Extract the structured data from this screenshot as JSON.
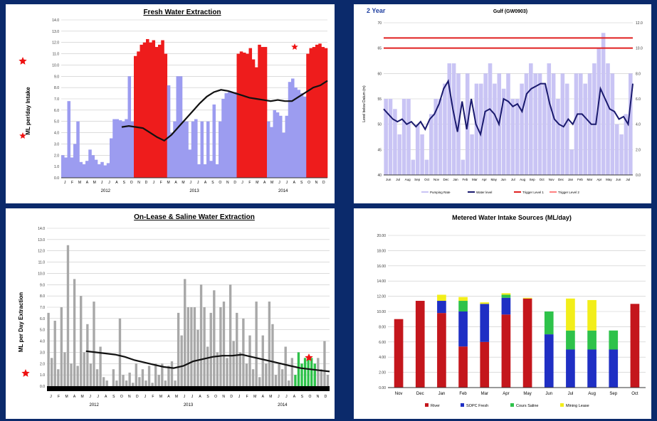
{
  "colors": {
    "background": "#0b2a6b",
    "fresh_bar": "#9c9cf0",
    "fresh_peak": "#ee1c1c",
    "trend": "#111111",
    "saline_bar": "#a8a8a8",
    "saline_green": "#2ec24a",
    "target_line": "#e02020",
    "river": "#c4161c",
    "sopc": "#1f2fc4",
    "saline": "#2ec24a",
    "mining": "#f2ee1a",
    "star": "#ee1111"
  },
  "chart_data": [
    {
      "id": "fresh",
      "type": "bar",
      "title": "Fresh Water Extraction",
      "ylabel": "ML per/day Intake",
      "ylim": [
        0,
        14
      ],
      "ytick_labels": [
        "0.0",
        "1.0",
        "2.0",
        "3.0",
        "4.0",
        "5.0",
        "6.0",
        "7.0",
        "8.0",
        "9.0",
        "10.0",
        "11.0",
        "12.0",
        "13.0",
        "14.0"
      ],
      "year_labels": [
        "2012",
        "2013",
        "2014"
      ],
      "month_labels": [
        "J",
        "F",
        "M",
        "A",
        "M",
        "J",
        "J",
        "A",
        "S",
        "O",
        "N",
        "D",
        "J",
        "F",
        "M",
        "A",
        "M",
        "J",
        "J",
        "A",
        "S",
        "O",
        "N",
        "D",
        "J",
        "F",
        "M",
        "A",
        "M",
        "J",
        "J",
        "A",
        "S",
        "O",
        "N",
        "D"
      ],
      "values": [
        2.0,
        1.8,
        6.8,
        1.8,
        3.0,
        5.0,
        1.4,
        1.2,
        1.5,
        2.5,
        2.0,
        1.6,
        1.2,
        1.4,
        1.1,
        1.3,
        3.5,
        5.2,
        5.2,
        5.1,
        5.0,
        5.2,
        9.0,
        5.0,
        10.8,
        11.2,
        11.8,
        12.0,
        12.3,
        12.0,
        12.2,
        11.6,
        11.8,
        12.2,
        11.0,
        8.2,
        4.0,
        5.0,
        9.0,
        9.0,
        5.0,
        5.0,
        2.5,
        5.0,
        5.2,
        1.2,
        5.0,
        1.2,
        5.0,
        1.5,
        6.5,
        1.2,
        5.0,
        7.0,
        7.5,
        7.6,
        7.6,
        7.6,
        11.0,
        11.2,
        11.1,
        11.0,
        11.5,
        10.5,
        9.8,
        11.8,
        11.6,
        11.6,
        5.0,
        4.5,
        6.0,
        5.8,
        5.5,
        4.0,
        5.5,
        8.5,
        8.8,
        8.0,
        7.8,
        7.5,
        7.2,
        11.0,
        11.5,
        11.6,
        11.8,
        11.9,
        11.6,
        11.5
      ],
      "peak_ranges": [
        [
          24,
          34
        ],
        [
          58,
          67
        ],
        [
          81,
          87
        ]
      ],
      "trend": [
        4.5,
        4.6,
        4.5,
        4.4,
        4.0,
        3.6,
        3.3,
        3.8,
        4.5,
        5.2,
        5.9,
        6.6,
        7.2,
        7.6,
        7.8,
        7.7,
        7.5,
        7.3,
        7.1,
        7.0,
        6.9,
        6.8,
        6.9,
        6.8,
        6.8,
        7.2,
        7.6,
        8.0,
        8.2,
        8.6
      ],
      "trend_start_index": 20,
      "stars": 2
    },
    {
      "id": "two-year",
      "type": "bar",
      "title": "Gulf (GW0903)",
      "subtitle": "2 Year",
      "ylabel": "Level below Datum (m)",
      "ylim": [
        40,
        70
      ],
      "ytick_labels": [
        "40",
        "45",
        "50",
        "55",
        "60",
        "65",
        "70"
      ],
      "y2_tick_labels": [
        "0.0",
        "2.0",
        "4.0",
        "6.0",
        "8.0",
        "10.0",
        "12.0"
      ],
      "month_labels": [
        "Jun",
        "Jul",
        "Aug",
        "Sep",
        "Oct",
        "Nov",
        "Dec",
        "Jan",
        "Feb",
        "Mar",
        "Apr",
        "May",
        "Jun",
        "Jul",
        "Aug",
        "Sep",
        "Oct",
        "Nov",
        "Dec",
        "Jan",
        "Feb",
        "Mar",
        "Apr",
        "May",
        "Jun",
        "Jul"
      ],
      "bar_values": [
        55,
        55,
        53,
        48,
        55,
        55,
        43,
        50,
        48,
        43,
        52,
        55,
        55,
        58,
        62,
        62,
        60,
        43,
        60,
        48,
        58,
        58,
        60,
        62,
        58,
        60,
        57,
        60,
        55,
        55,
        58,
        60,
        62,
        60,
        60,
        58,
        62,
        60,
        55,
        60,
        58,
        45,
        60,
        60,
        58,
        60,
        62,
        65,
        68,
        62,
        60,
        50,
        48,
        52,
        60
      ],
      "line_values": [
        53,
        52,
        51,
        50.5,
        51,
        50,
        50.5,
        49.5,
        50.5,
        49,
        51,
        52,
        54,
        57,
        58.5,
        53,
        48.5,
        54.5,
        49,
        55,
        50,
        48,
        52.5,
        53,
        52,
        50,
        55,
        54.5,
        53.5,
        54,
        52.5,
        56,
        57,
        57.5,
        58,
        58,
        54,
        51,
        50,
        49.5,
        51,
        50,
        52,
        52,
        51,
        50,
        50,
        57,
        55,
        53,
        52.5,
        51,
        51.5,
        50,
        58
      ],
      "target_lines": [
        67,
        65
      ],
      "legend": [
        "Pumping Rate",
        "Water level",
        "Trigger Level 1",
        "Trigger Level 2"
      ]
    },
    {
      "id": "saline",
      "type": "bar",
      "title": "On-Lease & Saline Water Extraction",
      "ylabel": "ML per Day Extraction",
      "ylim": [
        0,
        14
      ],
      "ytick_labels": [
        "0.0",
        "1.0",
        "2.0",
        "3.0",
        "4.0",
        "5.0",
        "6.0",
        "7.0",
        "8.0",
        "9.0",
        "10.0",
        "11.0",
        "12.0",
        "13.0",
        "14.0"
      ],
      "year_labels": [
        "2012",
        "2013",
        "2014"
      ],
      "month_labels": [
        "J",
        "F",
        "M",
        "A",
        "M",
        "J",
        "J",
        "A",
        "S",
        "O",
        "N",
        "D",
        "J",
        "F",
        "M",
        "A",
        "M",
        "J",
        "J",
        "A",
        "S",
        "O",
        "N",
        "D",
        "J",
        "F",
        "M",
        "A",
        "M",
        "J",
        "J",
        "A",
        "S",
        "O",
        "N",
        "D"
      ],
      "values": [
        6.5,
        2.5,
        5.8,
        1.5,
        7.0,
        3.0,
        12.5,
        2.0,
        9.5,
        1.8,
        8.0,
        3.0,
        5.5,
        2.0,
        7.5,
        1.5,
        3.5,
        0.8,
        0.5,
        0.0,
        1.5,
        0.5,
        6.0,
        1.0,
        0.5,
        1.2,
        0.3,
        2.0,
        0.8,
        1.5,
        0.5,
        1.8,
        0.3,
        2.0,
        1.0,
        2.0,
        0.5,
        1.8,
        2.2,
        0.5,
        6.5,
        4.5,
        9.5,
        7.0,
        7.0,
        7.0,
        5.0,
        9.0,
        7.0,
        3.5,
        6.5,
        8.5,
        3.0,
        7.0,
        7.5,
        2.5,
        9.0,
        4.0,
        6.5,
        3.0,
        6.0,
        2.0,
        4.5,
        1.5,
        7.5,
        0.8,
        4.5,
        2.0,
        7.5,
        5.5,
        1.0,
        2.0,
        1.5,
        3.5,
        0.5,
        2.5,
        1.0,
        3.0,
        2.0,
        2.5,
        2.5,
        2.5,
        2.0,
        2.5,
        1.5,
        4.0,
        1.0
      ],
      "green_start": 76,
      "trend": [
        3.1,
        3.0,
        2.9,
        2.8,
        2.6,
        2.3,
        2.1,
        1.9,
        1.7,
        1.6,
        1.8,
        2.2,
        2.4,
        2.6,
        2.7,
        2.7,
        2.8,
        2.6,
        2.4,
        2.2,
        2.0,
        1.8,
        1.6,
        1.5,
        1.4,
        1.3
      ],
      "trend_start_index": 12,
      "stars": 2
    },
    {
      "id": "metered",
      "type": "bar",
      "stacked": true,
      "title": "Metered Water Intake Sources (ML/day)",
      "ylim": [
        0,
        20
      ],
      "ytick_labels": [
        "0.00",
        "2.00",
        "4.00",
        "6.00",
        "8.00",
        "10.00",
        "12.00",
        "14.00",
        "16.00",
        "18.00",
        "20.00"
      ],
      "categories": [
        "Nov",
        "Dec",
        "Jan",
        "Feb",
        "Mar",
        "Apr",
        "May",
        "Jun",
        "Jul",
        "Aug",
        "Sep",
        "Oct"
      ],
      "series": [
        {
          "name": "River",
          "values": [
            9.0,
            11.4,
            9.8,
            5.4,
            6.0,
            9.6,
            11.7,
            0,
            0,
            0,
            0,
            11.0
          ]
        },
        {
          "name": "SOPC Fresh",
          "values": [
            0,
            0,
            1.6,
            4.6,
            5.0,
            2.2,
            0,
            7.0,
            5.0,
            5.0,
            5.0,
            0
          ]
        },
        {
          "name": "Cours Saline",
          "values": [
            0,
            0,
            0,
            1.4,
            0,
            0.4,
            0,
            3.0,
            2.5,
            2.5,
            2.5,
            0
          ]
        },
        {
          "name": "Mining Lease",
          "values": [
            0,
            0,
            0.8,
            0.5,
            0.2,
            0.2,
            0.1,
            0,
            4.2,
            4.0,
            0,
            0
          ]
        }
      ],
      "legend": [
        "River",
        "SOPC Fresh",
        "Cours Saline",
        "Mining Lease"
      ]
    }
  ]
}
